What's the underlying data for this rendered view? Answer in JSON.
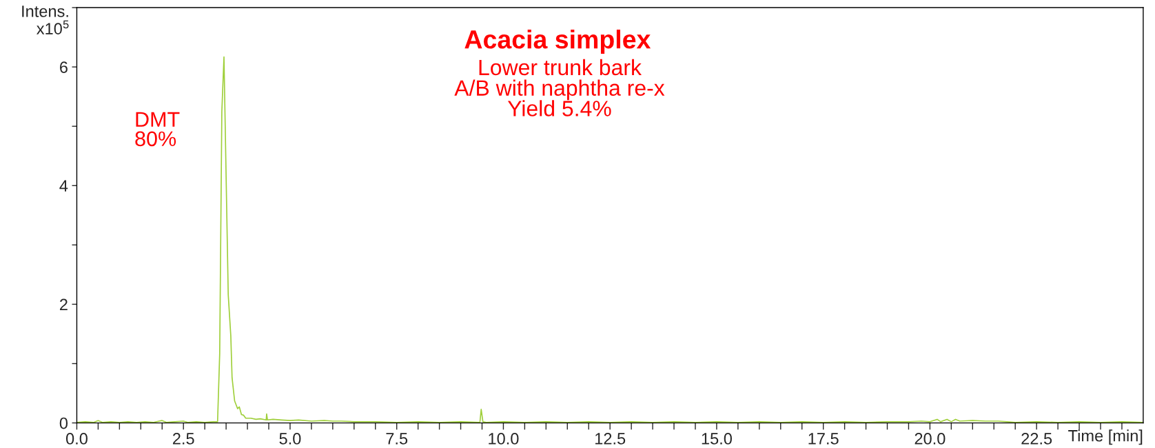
{
  "chart_data": {
    "type": "line",
    "title": "Acacia simplex",
    "subtitle": "Lower trunk bark\nA/B with naphtha re-x\nYield 5.4%",
    "xlabel": "Time [min]",
    "ylabel": "Intens.\nx10$^{5}$",
    "annotations": [
      "DMT\n80%"
    ],
    "series": [
      {
        "color": "#9fcf3a",
        "x": [
          0.0,
          0.2,
          0.4,
          0.5,
          0.6,
          0.8,
          1.0,
          1.2,
          1.4,
          1.6,
          1.8,
          2.0,
          2.1,
          2.3,
          2.5,
          2.6,
          2.8,
          3.0,
          3.2,
          3.3,
          3.35,
          3.4,
          3.45,
          3.55,
          3.61,
          3.64,
          3.7,
          3.77,
          3.81,
          3.86,
          3.91,
          3.96,
          4.08,
          4.2,
          4.3,
          4.44,
          4.45,
          4.47,
          4.6,
          4.8,
          5.0,
          5.2,
          5.5,
          5.8,
          6.0,
          6.2,
          6.5,
          7.0,
          7.5,
          8.0,
          8.5,
          9.0,
          9.45,
          9.48,
          9.52,
          9.6,
          10.0,
          10.5,
          11.0,
          11.5,
          12.0,
          12.5,
          13.0,
          13.5,
          14.0,
          14.5,
          15.0,
          15.5,
          16.0,
          16.5,
          17.0,
          17.5,
          18.0,
          18.5,
          19.0,
          19.5,
          19.8,
          20.0,
          20.17,
          20.25,
          20.4,
          20.5,
          20.6,
          20.7,
          21.0,
          21.3,
          21.6,
          21.8,
          22.0,
          22.5,
          23.0,
          23.5,
          24.0,
          24.5,
          25.0
        ],
        "values": [
          0.01,
          0.02,
          0.01,
          0.04,
          0.01,
          0.02,
          0.01,
          0.02,
          0.01,
          0.02,
          0.01,
          0.04,
          0.01,
          0.02,
          0.03,
          0.01,
          0.02,
          0.01,
          0.02,
          0.02,
          1.17,
          5.25,
          6.17,
          2.16,
          1.47,
          0.76,
          0.37,
          0.24,
          0.27,
          0.14,
          0.13,
          0.08,
          0.08,
          0.06,
          0.07,
          0.05,
          0.15,
          0.05,
          0.06,
          0.05,
          0.04,
          0.05,
          0.03,
          0.04,
          0.03,
          0.03,
          0.02,
          0.02,
          0.01,
          0.02,
          0.01,
          0.02,
          0.01,
          0.23,
          0.02,
          0.01,
          0.02,
          0.01,
          0.02,
          0.01,
          0.02,
          0.01,
          0.02,
          0.01,
          0.02,
          0.01,
          0.02,
          0.01,
          0.02,
          0.01,
          0.02,
          0.01,
          0.02,
          0.01,
          0.02,
          0.02,
          0.03,
          0.02,
          0.06,
          0.02,
          0.06,
          0.02,
          0.06,
          0.03,
          0.04,
          0.03,
          0.03,
          0.02,
          0.01,
          0.02,
          0.01,
          0.02,
          0.01,
          0.02,
          0.01
        ]
      }
    ],
    "xlim": [
      0,
      25
    ],
    "xticks": [
      {
        "value": 0,
        "label": "0.0"
      },
      {
        "value": 0.5,
        "label": null
      },
      {
        "value": 1,
        "label": null
      },
      {
        "value": 1.5,
        "label": null
      },
      {
        "value": 2,
        "label": null
      },
      {
        "value": 2.5,
        "label": "2.5"
      },
      {
        "value": 3,
        "label": null
      },
      {
        "value": 3.5,
        "label": null
      },
      {
        "value": 4,
        "label": null
      },
      {
        "value": 4.5,
        "label": null
      },
      {
        "value": 5,
        "label": "5.0"
      },
      {
        "value": 5.5,
        "label": null
      },
      {
        "value": 6,
        "label": null
      },
      {
        "value": 6.5,
        "label": null
      },
      {
        "value": 7,
        "label": null
      },
      {
        "value": 7.5,
        "label": "7.5"
      },
      {
        "value": 8,
        "label": null
      },
      {
        "value": 8.5,
        "label": null
      },
      {
        "value": 9,
        "label": null
      },
      {
        "value": 9.5,
        "label": null
      },
      {
        "value": 10,
        "label": "10.0"
      },
      {
        "value": 10.5,
        "label": null
      },
      {
        "value": 11,
        "label": null
      },
      {
        "value": 11.5,
        "label": null
      },
      {
        "value": 12,
        "label": null
      },
      {
        "value": 12.5,
        "label": "12.5"
      },
      {
        "value": 13,
        "label": null
      },
      {
        "value": 13.5,
        "label": null
      },
      {
        "value": 14,
        "label": null
      },
      {
        "value": 14.5,
        "label": null
      },
      {
        "value": 15,
        "label": "15.0"
      },
      {
        "value": 15.5,
        "label": null
      },
      {
        "value": 16,
        "label": null
      },
      {
        "value": 16.5,
        "label": null
      },
      {
        "value": 17,
        "label": null
      },
      {
        "value": 17.5,
        "label": "17.5"
      },
      {
        "value": 18,
        "label": null
      },
      {
        "value": 18.5,
        "label": null
      },
      {
        "value": 19,
        "label": null
      },
      {
        "value": 19.5,
        "label": null
      },
      {
        "value": 20,
        "label": "20.0"
      },
      {
        "value": 20.5,
        "label": null
      },
      {
        "value": 21,
        "label": null
      },
      {
        "value": 21.5,
        "label": null
      },
      {
        "value": 22,
        "label": null
      },
      {
        "value": 22.5,
        "label": "22.5"
      },
      {
        "value": 23,
        "label": null
      },
      {
        "value": 23.5,
        "label": null
      },
      {
        "value": 24,
        "label": null
      },
      {
        "value": 24.5,
        "label": null
      }
    ],
    "ylim": [
      0,
      7
    ],
    "yticks": [
      0,
      {
        "value": 1,
        "label": null
      },
      2,
      {
        "value": 3,
        "label": null
      },
      4,
      {
        "value": 5,
        "label": null
      },
      6,
      {
        "value": 7,
        "label": null
      }
    ],
    "grid": false
  }
}
